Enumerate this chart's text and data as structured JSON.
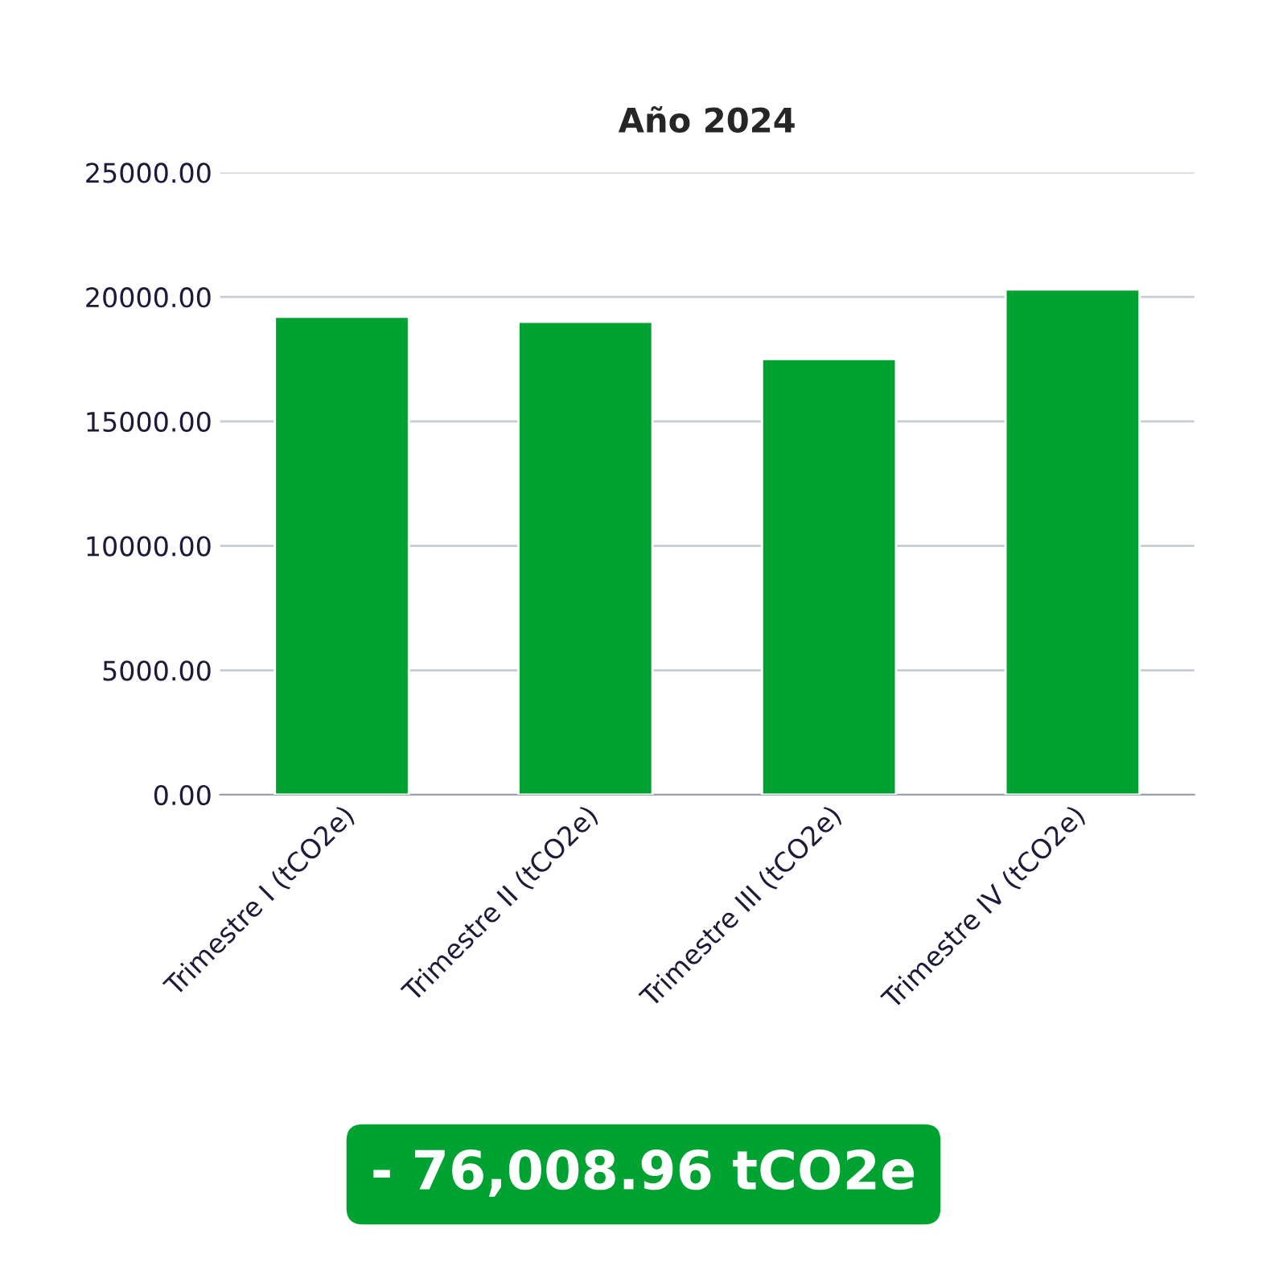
{
  "chart_data": {
    "type": "bar",
    "title": "Año 2024",
    "categories": [
      "Trimestre I (tCO2e)",
      "Trimestre II (tCO2e)",
      "Trimestre III (tCO2e)",
      "Trimestre IV (tCO2e)"
    ],
    "values": [
      19200,
      19000,
      17500,
      20300
    ],
    "color": "#00a331",
    "ylim": [
      0,
      25000
    ],
    "yticks": [
      {
        "value": 0,
        "label": "0.00"
      },
      {
        "value": 5000,
        "label": "5000.00"
      },
      {
        "value": 10000,
        "label": "10000.00"
      },
      {
        "value": 15000,
        "label": "15000.00"
      },
      {
        "value": 20000,
        "label": "20000.00"
      },
      {
        "value": 25000,
        "label": "25000.00"
      }
    ],
    "grid": "y",
    "legend": false,
    "annotations": [
      "- 76,008.96 tCO2e"
    ]
  }
}
